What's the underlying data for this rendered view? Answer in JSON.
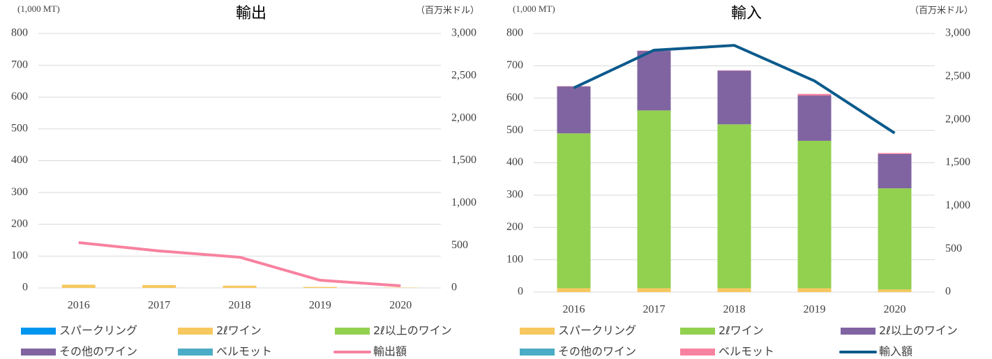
{
  "chart_data": [
    {
      "type": "bar",
      "stacked": true,
      "title": "輸出",
      "y_label": "(1,000 MT)",
      "y2_label": "（百万米ドル）",
      "categories": [
        "2016",
        "2017",
        "2018",
        "2019",
        "2020"
      ],
      "ylim": [
        0,
        800
      ],
      "yticks": [
        0,
        100,
        200,
        300,
        400,
        500,
        600,
        700,
        800
      ],
      "y2lim": [
        0,
        3000
      ],
      "y2ticks": [
        0,
        500,
        {
          "value": 1000,
          "label": "1,000"
        },
        {
          "value": 1500,
          "label": "1,500"
        },
        {
          "value": 2000,
          "label": "2,000"
        },
        {
          "value": 2500,
          "label": "2,500"
        },
        {
          "value": 3000,
          "label": "3,000"
        }
      ],
      "grid": true,
      "series": [
        {
          "name": "スパークリング",
          "color": "#0096f0",
          "values": [
            0,
            0,
            0,
            0,
            0
          ]
        },
        {
          "name": "2ℓワイン",
          "color": "#f6c85f",
          "values": [
            10,
            9,
            7,
            3,
            1
          ]
        },
        {
          "name": "2ℓ以上のワイン",
          "color": "#92d050",
          "values": [
            0,
            0,
            0,
            0,
            0
          ]
        },
        {
          "name": "その他のワイン",
          "color": "#8064a2",
          "values": [
            0,
            0,
            0,
            0,
            0
          ]
        },
        {
          "name": "ベルモット",
          "color": "#4bacc6",
          "values": [
            0,
            0,
            0,
            0,
            0
          ]
        },
        {
          "name": "輸出額",
          "color": "#f7829f",
          "type": "line",
          "axis": "y2",
          "values": [
            534,
            436,
            362,
            90,
            25
          ]
        }
      ]
    },
    {
      "type": "bar",
      "stacked": true,
      "title": "輸入",
      "y_label": "(1,000 MT)",
      "y2_label": "（百万米ドル）",
      "categories": [
        "2016",
        "2017",
        "2018",
        "2019",
        "2020"
      ],
      "ylim": [
        0,
        800
      ],
      "yticks": [
        0,
        100,
        200,
        300,
        400,
        500,
        600,
        700,
        800
      ],
      "y2lim": [
        0,
        3000
      ],
      "y2ticks": [
        0,
        500,
        {
          "value": 1000,
          "label": "1,000"
        },
        {
          "value": 1500,
          "label": "1,500"
        },
        {
          "value": 2000,
          "label": "2,000"
        },
        {
          "value": 2500,
          "label": "2,500"
        },
        {
          "value": 3000,
          "label": "3,000"
        }
      ],
      "grid": true,
      "series": [
        {
          "name": "スパークリング",
          "color": "#f6c85f",
          "values": [
            12,
            12,
            12,
            12,
            8
          ]
        },
        {
          "name": "2ℓワイン",
          "color": "#92d050",
          "values": [
            479,
            550,
            507,
            456,
            313
          ]
        },
        {
          "name": "2ℓ以上のワイン",
          "color": "#8064a2",
          "values": [
            145,
            184,
            166,
            140,
            106
          ]
        },
        {
          "name": "その他のワイン",
          "color": "#4bacc6",
          "values": [
            0,
            0,
            0,
            0,
            0
          ]
        },
        {
          "name": "ベルモット",
          "color": "#f7829f",
          "values": [
            1,
            1,
            1,
            5,
            3
          ]
        },
        {
          "name": "輸入額",
          "color": "#0b5a8c",
          "type": "line",
          "axis": "y2",
          "values": [
            2369,
            2806,
            2862,
            2450,
            1844
          ]
        }
      ]
    }
  ]
}
